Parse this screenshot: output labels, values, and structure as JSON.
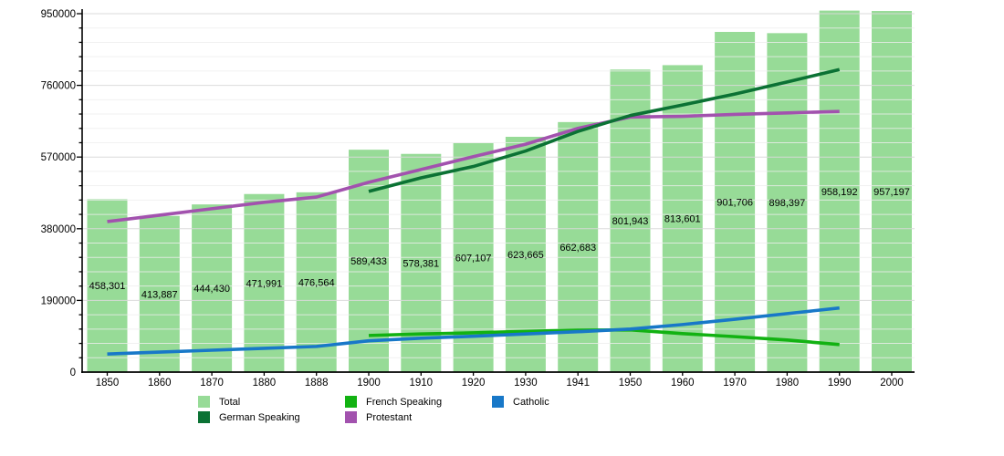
{
  "chart_data": {
    "type": "bar",
    "title": "",
    "xlabel": "",
    "ylabel": "",
    "categories": [
      "1850",
      "1860",
      "1870",
      "1880",
      "1888",
      "1900",
      "1910",
      "1920",
      "1930",
      "1941",
      "1950",
      "1960",
      "1970",
      "1980",
      "1990",
      "2000"
    ],
    "bars": {
      "name": "Total",
      "color": "#97db97",
      "values": [
        458301,
        413887,
        444430,
        471991,
        476564,
        589433,
        578381,
        607107,
        623665,
        662683,
        801943,
        813601,
        901706,
        898397,
        958192,
        957197
      ],
      "labels": [
        "458,301",
        "413,887",
        "444,430",
        "471,991",
        "476,564",
        "589,433",
        "578,381",
        "607,107",
        "623,665",
        "662,683",
        "801,943",
        "813,601",
        "901,706",
        "898,397",
        "958,192",
        "957,197"
      ]
    },
    "series": [
      {
        "name": "Protestant",
        "color": "#a252ae",
        "values": [
          399000,
          416000,
          433000,
          450000,
          464000,
          503000,
          537000,
          571000,
          604000,
          646000,
          676000,
          678000,
          683000,
          687000,
          691000,
          null
        ]
      },
      {
        "name": "German Speaking",
        "color": "#0b7234",
        "values": [
          null,
          null,
          null,
          null,
          null,
          479000,
          515000,
          545000,
          586000,
          638000,
          680000,
          708000,
          737000,
          769000,
          802000,
          null
        ]
      },
      {
        "name": "French Speaking",
        "color": "#12b212",
        "values": [
          null,
          null,
          null,
          null,
          null,
          97000,
          101000,
          104000,
          108000,
          111000,
          112000,
          102000,
          94000,
          85000,
          73000,
          null
        ]
      },
      {
        "name": "Catholic",
        "color": "#1878c8",
        "values": [
          48000,
          53000,
          58000,
          63000,
          68000,
          83000,
          90000,
          95000,
          101000,
          107000,
          114000,
          126000,
          140000,
          155000,
          170000,
          null
        ]
      }
    ],
    "ylim": [
      0,
      950000
    ],
    "yticks": [
      0,
      190000,
      380000,
      570000,
      760000,
      950000
    ],
    "ytick_labels": [
      "0",
      "190000",
      "380000",
      "570000",
      "760000",
      "950000"
    ],
    "minor_tick_step": 38000,
    "grid": true,
    "legend_position": "bottom"
  },
  "legend": {
    "items": [
      {
        "label": "Total",
        "color": "#97db97"
      },
      {
        "label": "French Speaking",
        "color": "#12b212"
      },
      {
        "label": "Catholic",
        "color": "#1878c8"
      },
      {
        "label": "German Speaking",
        "color": "#0b7234"
      },
      {
        "label": "Protestant",
        "color": "#a252ae"
      }
    ]
  },
  "colors": {
    "axis": "#000000",
    "major_grid": "#d9d9d9",
    "minor_grid": "#ededed",
    "label_text": "#000000"
  }
}
